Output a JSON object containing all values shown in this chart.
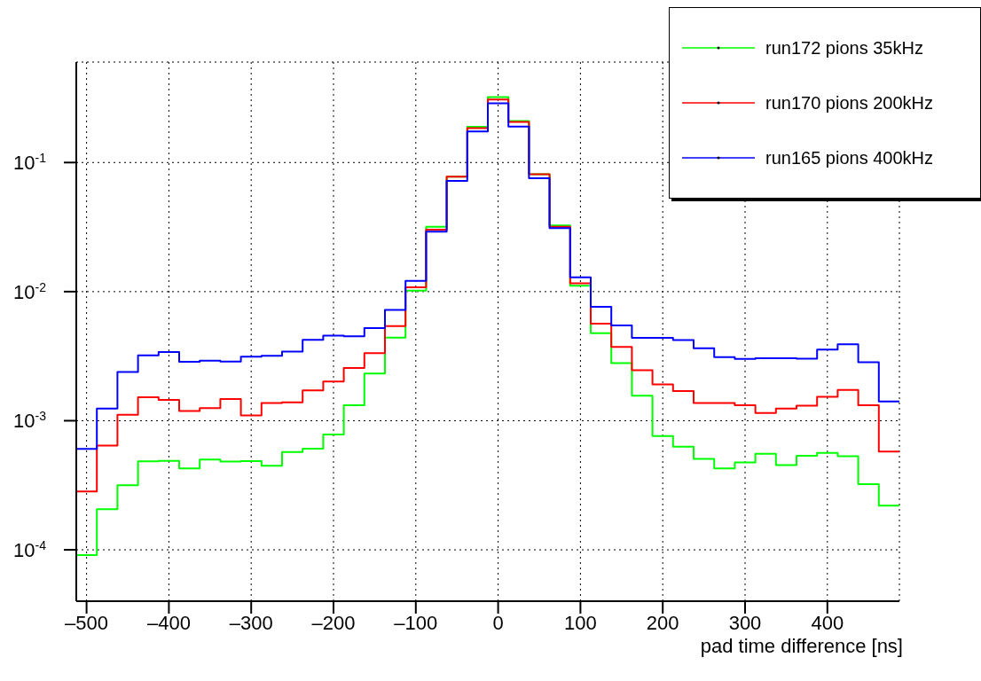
{
  "chart_data": {
    "type": "histogram",
    "xlabel": "pad time difference [ns]",
    "bins": [
      -512.5,
      -487.5,
      -462.5,
      -437.5,
      -412.5,
      -387.5,
      -362.5,
      -337.5,
      -312.5,
      -287.5,
      -262.5,
      -237.5,
      -212.5,
      -187.5,
      -162.5,
      -137.5,
      -112.5,
      -87.5,
      -62.5,
      -37.5,
      -12.5,
      12.5,
      37.5,
      62.5,
      87.5,
      112.5,
      137.5,
      162.5,
      187.5,
      212.5,
      237.5,
      262.5,
      287.5,
      312.5,
      337.5,
      362.5,
      387.5,
      412.5,
      437.5,
      462.5,
      487.5
    ],
    "series": [
      {
        "name": "run172 pions 35kHz",
        "color": "#00ff00",
        "values": [
          9.1e-05,
          0.000206,
          0.000316,
          0.000485,
          0.000489,
          0.000428,
          0.0005,
          0.000483,
          0.000487,
          0.000448,
          0.000573,
          0.000608,
          0.000782,
          0.00132,
          0.00232,
          0.0044,
          0.0102,
          0.0318,
          0.0778,
          0.189,
          0.321,
          0.21,
          0.081,
          0.0326,
          0.0111,
          0.00477,
          0.00279,
          0.00156,
          0.000762,
          0.00063,
          0.000507,
          0.000428,
          0.000475,
          0.000555,
          0.000454,
          0.000536,
          0.000564,
          0.000531,
          0.000323,
          0.00022
        ]
      },
      {
        "name": "run170 pions 200kHz",
        "color": "#ff0000",
        "values": [
          0.000283,
          0.000643,
          0.00111,
          0.00152,
          0.00145,
          0.00119,
          0.00125,
          0.00147,
          0.0011,
          0.00137,
          0.00139,
          0.00172,
          0.00201,
          0.00256,
          0.00334,
          0.0054,
          0.0108,
          0.0302,
          0.0778,
          0.185,
          0.308,
          0.206,
          0.081,
          0.0318,
          0.0116,
          0.00564,
          0.00373,
          0.00246,
          0.00191,
          0.0017,
          0.00137,
          0.00137,
          0.00132,
          0.00115,
          0.00124,
          0.00131,
          0.00153,
          0.00173,
          0.00132,
          0.000578
        ]
      },
      {
        "name": "run165 pions 400kHz",
        "color": "#0000ff",
        "values": [
          0.000605,
          0.00124,
          0.00239,
          0.00321,
          0.0034,
          0.00286,
          0.00292,
          0.00287,
          0.00313,
          0.00318,
          0.00343,
          0.00424,
          0.00457,
          0.0045,
          0.00522,
          0.00721,
          0.0121,
          0.0292,
          0.0721,
          0.174,
          0.288,
          0.19,
          0.0755,
          0.0311,
          0.0129,
          0.00762,
          0.00547,
          0.00439,
          0.00439,
          0.00421,
          0.00364,
          0.00311,
          0.00301,
          0.00305,
          0.00305,
          0.00302,
          0.00355,
          0.00391,
          0.00284,
          0.00141
        ]
      }
    ],
    "xlim": [
      -512.5,
      487.5
    ],
    "xticks": [
      {
        "value": -500,
        "label": "–500"
      },
      {
        "value": -400,
        "label": "–400"
      },
      {
        "value": -300,
        "label": "–300"
      },
      {
        "value": -200,
        "label": "–200"
      },
      {
        "value": -100,
        "label": "–100"
      },
      0,
      100,
      200,
      300,
      400
    ],
    "ylim": [
      4e-05,
      0.6
    ],
    "yticks": [
      {
        "value": 0.0001,
        "label": "10$^{-4}$"
      },
      {
        "value": 0.001,
        "label": "10$^{-3}$"
      },
      {
        "value": 0.01,
        "label": "10$^{-2}$"
      },
      {
        "value": 0.1,
        "label": "10$^{-1}$"
      }
    ],
    "log": true,
    "grid": true,
    "legend": "top right"
  }
}
